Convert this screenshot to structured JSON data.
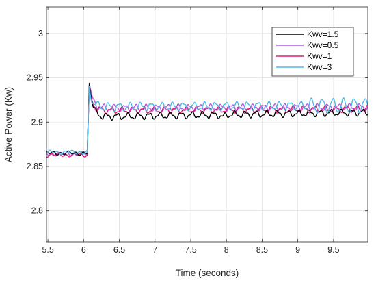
{
  "chart_data": {
    "type": "line",
    "title": "",
    "xlabel": "Time (seconds)",
    "ylabel": "Active Power (Kw)",
    "xlim": [
      5.48,
      9.98
    ],
    "ylim": [
      2.765,
      3.03
    ],
    "xticks": [
      5.5,
      6,
      6.5,
      7,
      7.5,
      8,
      8.5,
      9,
      9.5
    ],
    "xtick_labels": [
      "5.5",
      "6",
      "6.5",
      "7",
      "7.5",
      "8",
      "8.5",
      "9",
      "9.5"
    ],
    "yticks": [
      2.8,
      2.85,
      2.9,
      2.95,
      3
    ],
    "ytick_labels": [
      "2.8",
      "2.85",
      "2.9",
      "2.95",
      "3"
    ],
    "grid": true,
    "legend_position": "top-right",
    "series": [
      {
        "name": "Kwv=1.5",
        "color": "#000000",
        "pre": 2.865,
        "peak": 2.947,
        "post_start": 2.906,
        "post_end": 2.911,
        "ripple": 0.003
      },
      {
        "name": "Kwv=0.5",
        "color": "#b259e6",
        "pre": 2.864,
        "peak": 2.944,
        "post_start": 2.916,
        "post_end": 2.917,
        "ripple": 0.003
      },
      {
        "name": "Kwv=1",
        "color": "#e0197d",
        "pre": 2.863,
        "peak": 2.94,
        "post_start": 2.913,
        "post_end": 2.915,
        "ripple": 0.003
      },
      {
        "name": "Kwv=3",
        "color": "#4db8e8",
        "pre": 2.866,
        "peak": 2.938,
        "post_start": 2.917,
        "post_end": 2.919,
        "ripple": 0.004
      }
    ],
    "step_time": 6.05,
    "peak_time": 6.08
  }
}
